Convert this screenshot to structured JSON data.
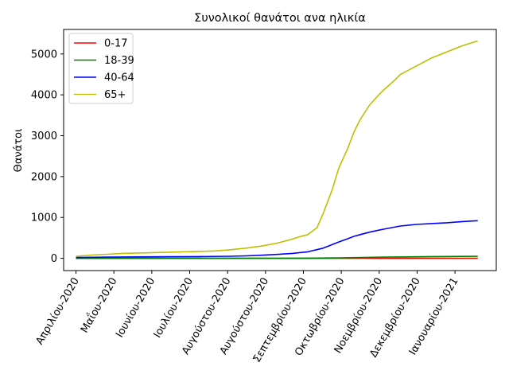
{
  "chart_data": {
    "type": "line",
    "title": "Συνολικοί θανάτοι ανα ηλικία",
    "xlabel": "",
    "ylabel": "Θανάτοι",
    "x_tick_labels": [
      "Απριλίου-2020",
      "Μαΐου-2020",
      "Ιουνίου-2020",
      "Ιουλίου-2020",
      "Αυγούστου-2020",
      "Αυγούστου-2020",
      "Σεπτεμβρίου-2020",
      "Οκτωβρίου-2020",
      "Νοεμβρίου-2020",
      "Δεκεμβρίου-2020",
      "Ιανουαρίου-2021"
    ],
    "y_ticks": [
      0,
      1000,
      2000,
      3000,
      4000,
      5000
    ],
    "ylim": [
      -300,
      5600
    ],
    "xlim": [
      -4,
      136
    ],
    "x_index_note_free": true,
    "grid": false,
    "legend_position": "upper-left",
    "series": [
      {
        "name": "0-17",
        "color": "#ff0000",
        "x": [
          0,
          130
        ],
        "y": [
          0,
          2
        ]
      },
      {
        "name": "18-39",
        "color": "#008000",
        "x": [
          0,
          70,
          85,
          100,
          115,
          130
        ],
        "y": [
          0,
          2,
          10,
          30,
          42,
          48
        ]
      },
      {
        "name": "40-64",
        "color": "#0000ff",
        "x": [
          0,
          10,
          20,
          30,
          40,
          50,
          55,
          60,
          65,
          70,
          75,
          80,
          85,
          88,
          90,
          92,
          95,
          98,
          100,
          105,
          110,
          115,
          120,
          125,
          130
        ],
        "y": [
          20,
          30,
          35,
          38,
          42,
          50,
          60,
          75,
          95,
          120,
          160,
          250,
          400,
          480,
          540,
          580,
          640,
          690,
          720,
          790,
          830,
          850,
          870,
          900,
          920
        ]
      },
      {
        "name": "65+",
        "color": "#bfbf00",
        "x": [
          0,
          5,
          10,
          15,
          20,
          25,
          30,
          35,
          40,
          45,
          50,
          55,
          60,
          65,
          68,
          70,
          72,
          75,
          78,
          80,
          83,
          85,
          88,
          90,
          92,
          95,
          98,
          100,
          103,
          105,
          110,
          115,
          120,
          125,
          130
        ],
        "y": [
          50,
          80,
          100,
          120,
          130,
          140,
          150,
          160,
          170,
          180,
          210,
          250,
          300,
          370,
          430,
          470,
          520,
          580,
          750,
          1100,
          1700,
          2200,
          2700,
          3100,
          3400,
          3750,
          4000,
          4150,
          4350,
          4500,
          4700,
          4900,
          5050,
          5200,
          5320
        ]
      }
    ]
  }
}
